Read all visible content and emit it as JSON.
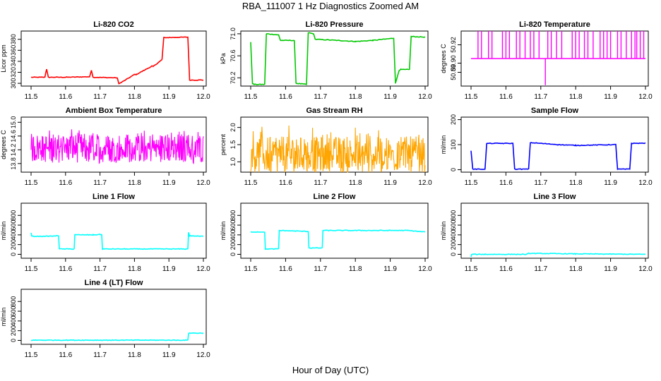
{
  "figure": {
    "title": "RBA_111007  1 Hz Diagnostics Zoomed AM",
    "xlabel": "Hour of Day (UTC)"
  },
  "chart_data": [
    {
      "type": "line",
      "title": "Li-820 CO2",
      "xlabel": "",
      "ylabel": "Licor ppm",
      "color": "#ff0000",
      "xlim": [
        11.5,
        12.0
      ],
      "ylim": [
        295,
        395
      ],
      "xticks": [
        "11.5",
        "11.6",
        "11.7",
        "11.8",
        "11.9",
        "12.0"
      ],
      "yticks": [
        "300",
        "320",
        "340",
        "360",
        "380"
      ],
      "series": [
        {
          "x": [
            11.5,
            11.54,
            11.545,
            11.55,
            11.6,
            11.67,
            11.675,
            11.68,
            11.75,
            11.755,
            11.8,
            11.805,
            11.85,
            11.855,
            11.88,
            11.885,
            11.955,
            11.96,
            12.0
          ],
          "y": [
            311,
            311,
            326,
            311,
            311,
            312,
            324,
            311,
            310,
            299,
            316,
            316,
            331,
            331,
            343,
            383,
            384,
            306,
            306
          ]
        }
      ]
    },
    {
      "type": "line",
      "title": "Li-820 Pressure",
      "xlabel": "",
      "ylabel": "kPa",
      "color": "#00c800",
      "xlim": [
        11.5,
        12.0
      ],
      "ylim": [
        70.05,
        71.05
      ],
      "xticks": [
        "11.5",
        "11.6",
        "11.7",
        "11.8",
        "11.9",
        "12.0"
      ],
      "yticks": [
        "70.2",
        "70.6",
        "71.0"
      ],
      "series": [
        {
          "x": [
            11.5,
            11.505,
            11.51,
            11.54,
            11.545,
            11.58,
            11.585,
            11.625,
            11.63,
            11.66,
            11.665,
            11.68,
            11.685,
            11.75,
            11.8,
            11.85,
            11.91,
            11.915,
            11.925,
            11.93,
            11.955,
            11.96,
            12.0
          ],
          "y": [
            70.85,
            70.1,
            70.08,
            70.08,
            71.0,
            70.98,
            70.88,
            70.88,
            70.1,
            70.08,
            71.02,
            71.0,
            70.9,
            70.88,
            70.86,
            70.88,
            70.92,
            70.1,
            70.33,
            70.35,
            70.35,
            70.95,
            70.94
          ]
        }
      ]
    },
    {
      "type": "line",
      "title": "Li-820 Temperature",
      "xlabel": "",
      "ylabel": "degrees C",
      "color": "#ff00ff",
      "xlim": [
        11.5,
        12.0
      ],
      "ylim": [
        50.875,
        50.935
      ],
      "xticks": [
        "11.5",
        "11.6",
        "11.7",
        "11.8",
        "11.9",
        "12.0"
      ],
      "yticks": [
        "50.89",
        "50.90",
        "50.92"
      ],
      "baseline": 50.905,
      "high": 50.935,
      "dip_x": 11.713,
      "dip_y": 50.876,
      "spikes_x": [
        11.52,
        11.53,
        11.55,
        11.56,
        11.59,
        11.6,
        11.61,
        11.63,
        11.64,
        11.655,
        11.67,
        11.68,
        11.695,
        11.72,
        11.73,
        11.745,
        11.76,
        11.79,
        11.8,
        11.81,
        11.825,
        11.835,
        11.85,
        11.87,
        11.88,
        11.89,
        11.9,
        11.92,
        11.93,
        11.945,
        11.96,
        11.97,
        11.975,
        11.985,
        11.995
      ]
    },
    {
      "type": "line",
      "title": "Ambient Box Temperature",
      "xlabel": "",
      "ylabel": "degrees C",
      "color": "#ff00ff",
      "xlim": [
        11.5,
        12.0
      ],
      "ylim": [
        13.55,
        15.15
      ],
      "xticks": [
        "11.5",
        "11.6",
        "11.7",
        "11.8",
        "11.9",
        "12.0"
      ],
      "yticks": [
        "13.8",
        "14.2",
        "14.6",
        "15.0"
      ],
      "noise_center": 14.25,
      "noise_low": 13.8,
      "noise_high": 14.75
    },
    {
      "type": "line",
      "title": "Gas Stream RH",
      "xlabel": "",
      "ylabel": "percent",
      "color": "#ffa500",
      "xlim": [
        11.5,
        12.0
      ],
      "ylim": [
        0.7,
        2.3
      ],
      "xticks": [
        "11.5",
        "11.6",
        "11.7",
        "11.8",
        "11.9",
        "12.0"
      ],
      "yticks": [
        "1.0",
        "1.5",
        "2.0"
      ],
      "noise_center": 1.2,
      "noise_low": 0.8,
      "noise_high": 2.0
    },
    {
      "type": "line",
      "title": "Sample Flow",
      "xlabel": "",
      "ylabel": "ml/min",
      "color": "#0000ff",
      "xlim": [
        11.5,
        12.0
      ],
      "ylim": [
        -10,
        210
      ],
      "xticks": [
        "11.5",
        "11.6",
        "11.7",
        "11.8",
        "11.9",
        "12.0"
      ],
      "yticks": [
        "0",
        "100",
        "200"
      ],
      "series": [
        {
          "x": [
            11.5,
            11.505,
            11.54,
            11.545,
            11.62,
            11.625,
            11.665,
            11.67,
            11.75,
            11.8,
            11.915,
            11.92,
            11.955,
            11.96,
            12.0
          ],
          "y": [
            75,
            2,
            2,
            105,
            105,
            2,
            2,
            108,
            100,
            97,
            100,
            2,
            2,
            105,
            106
          ]
        }
      ]
    },
    {
      "type": "line",
      "title": "Line 1 Flow",
      "xlabel": "",
      "ylabel": "ml/min",
      "color": "#00ffff",
      "xlim": [
        11.5,
        12.0
      ],
      "ylim": [
        -80,
        1050
      ],
      "xticks": [
        "11.5",
        "11.6",
        "11.7",
        "11.8",
        "11.9",
        "12.0"
      ],
      "yticks": [
        "0",
        "200",
        "400",
        "600",
        "800"
      ],
      "series": [
        {
          "x": [
            11.5,
            11.502,
            11.54,
            11.58,
            11.582,
            11.625,
            11.627,
            11.68,
            11.705,
            11.707,
            11.955,
            11.957,
            11.96,
            12.0
          ],
          "y": [
            440,
            370,
            370,
            380,
            110,
            110,
            400,
            400,
            410,
            110,
            110,
            450,
            380,
            370
          ]
        }
      ]
    },
    {
      "type": "line",
      "title": "Line 2 Flow",
      "xlabel": "",
      "ylabel": "ml/min",
      "color": "#00ffff",
      "xlim": [
        11.5,
        12.0
      ],
      "ylim": [
        -80,
        1050
      ],
      "xticks": [
        "11.5",
        "11.6",
        "11.7",
        "11.8",
        "11.9",
        "12.0"
      ],
      "yticks": [
        "0",
        "200",
        "400",
        "600",
        "800"
      ],
      "series": [
        {
          "x": [
            11.5,
            11.54,
            11.542,
            11.58,
            11.582,
            11.665,
            11.667,
            11.705,
            11.707,
            11.95,
            12.0
          ],
          "y": [
            460,
            460,
            110,
            110,
            490,
            470,
            130,
            130,
            490,
            490,
            460
          ]
        }
      ]
    },
    {
      "type": "line",
      "title": "Line 3 Flow",
      "xlabel": "",
      "ylabel": "ml/min",
      "color": "#00ffff",
      "xlim": [
        11.5,
        12.0
      ],
      "ylim": [
        -80,
        1050
      ],
      "xticks": [
        "11.5",
        "11.6",
        "11.7",
        "11.8",
        "11.9",
        "12.0"
      ],
      "yticks": [
        "0",
        "200",
        "400",
        "600",
        "800"
      ],
      "series": [
        {
          "x": [
            11.5,
            11.502,
            11.54,
            11.66,
            11.665,
            11.8,
            12.0
          ],
          "y": [
            -50,
            0,
            0,
            0,
            20,
            10,
            0
          ]
        }
      ]
    },
    {
      "type": "line",
      "title": "Line 4 (LT) Flow",
      "xlabel": "",
      "ylabel": "ml/min",
      "color": "#00ffff",
      "xlim": [
        11.5,
        12.0
      ],
      "ylim": [
        -80,
        1050
      ],
      "xticks": [
        "11.5",
        "11.6",
        "11.7",
        "11.8",
        "11.9",
        "12.0"
      ],
      "yticks": [
        "0",
        "200",
        "400",
        "600",
        "800"
      ],
      "series": [
        {
          "x": [
            11.5,
            11.955,
            11.957,
            12.0
          ],
          "y": [
            5,
            5,
            150,
            150
          ]
        }
      ]
    }
  ]
}
